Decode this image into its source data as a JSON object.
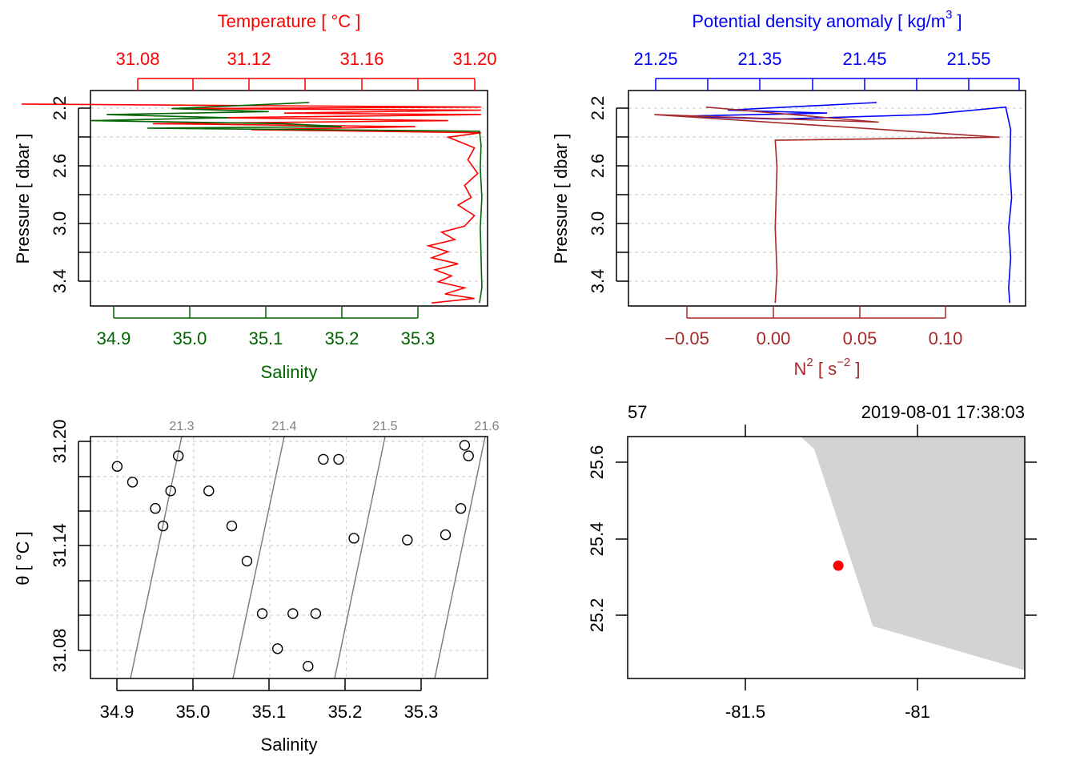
{
  "colors": {
    "temperature": "#ff0000",
    "salinity": "#006400",
    "density": "#0000ff",
    "n2": "#a52a2a",
    "tsPoints": "#000000",
    "isopycnal": "#808080",
    "land": "#d3d3d3",
    "station": "#ff0000",
    "grid": "#d3d3d3"
  },
  "chart_data": [
    {
      "type": "line",
      "panel": "profile-temperature-salinity",
      "title_top": "Temperature [ °C ]",
      "xlabel_bottom": "Salinity",
      "ylabel": "Pressure [ dbar ]",
      "top_ticks": [
        "31.08",
        "31.12",
        "31.16",
        "31.20"
      ],
      "bottom_ticks": [
        "34.9",
        "35.0",
        "35.1",
        "35.2",
        "35.3"
      ],
      "y_ticks": [
        "2.2",
        "2.6",
        "3.0",
        "3.4"
      ],
      "top_lim": [
        31.081,
        31.202
      ],
      "bottom_lim": [
        34.88,
        35.37
      ],
      "ylim": [
        3.52,
        2.09
      ],
      "y_reversed": true,
      "grid": true,
      "series": [
        {
          "name": "Temperature",
          "axis": "top",
          "points": [
            [
              31.06,
              2.18
            ],
            [
              31.2,
              2.2
            ],
            [
              31.11,
              2.21
            ],
            [
              31.2,
              2.22
            ],
            [
              31.14,
              2.24
            ],
            [
              31.2,
              2.25
            ],
            [
              31.12,
              2.27
            ],
            [
              31.19,
              2.29
            ],
            [
              31.1,
              2.31
            ],
            [
              31.18,
              2.33
            ],
            [
              31.13,
              2.35
            ],
            [
              31.2,
              2.37
            ],
            [
              31.19,
              2.4
            ],
            [
              31.198,
              2.47
            ],
            [
              31.196,
              2.55
            ],
            [
              31.199,
              2.64
            ],
            [
              31.195,
              2.72
            ],
            [
              31.197,
              2.8
            ],
            [
              31.193,
              2.85
            ],
            [
              31.198,
              2.92
            ],
            [
              31.195,
              2.99
            ],
            [
              31.188,
              3.03
            ],
            [
              31.192,
              3.08
            ],
            [
              31.184,
              3.12
            ],
            [
              31.19,
              3.16
            ],
            [
              31.185,
              3.2
            ],
            [
              31.193,
              3.24
            ],
            [
              31.186,
              3.28
            ],
            [
              31.191,
              3.32
            ],
            [
              31.187,
              3.36
            ],
            [
              31.195,
              3.4
            ],
            [
              31.189,
              3.44
            ],
            [
              31.198,
              3.47
            ],
            [
              31.185,
              3.5
            ]
          ]
        },
        {
          "name": "Salinity",
          "axis": "bottom",
          "points": [
            [
              35.15,
              2.17
            ],
            [
              34.98,
              2.21
            ],
            [
              35.1,
              2.23
            ],
            [
              34.9,
              2.25
            ],
            [
              35.05,
              2.27
            ],
            [
              34.88,
              2.29
            ],
            [
              35.12,
              2.31
            ],
            [
              35.19,
              2.33
            ],
            [
              34.95,
              2.34
            ],
            [
              35.36,
              2.36
            ],
            [
              35.362,
              2.45
            ],
            [
              35.361,
              2.6
            ],
            [
              35.363,
              2.8
            ],
            [
              35.361,
              3.0
            ],
            [
              35.362,
              3.2
            ],
            [
              35.363,
              3.4
            ],
            [
              35.36,
              3.5
            ]
          ]
        }
      ]
    },
    {
      "type": "line",
      "panel": "profile-density-n2",
      "title_top": "Potential density anomaly [ kg/m",
      "title_top_sup": "3",
      "title_top_tail": " ]",
      "xlabel_bottom": "N",
      "xlabel_bottom_sup": "2",
      "xlabel_bottom_mid": " [ s",
      "xlabel_bottom_sup2": "−2",
      "xlabel_bottom_tail": " ]",
      "ylabel": "Pressure [ dbar ]",
      "top_ticks": [
        "21.25",
        "21.35",
        "21.45",
        "21.55"
      ],
      "bottom_ticks": [
        "−0.05",
        "0.00",
        "0.05",
        "0.10"
      ],
      "y_ticks": [
        "2.2",
        "2.6",
        "3.0",
        "3.4"
      ],
      "top_lim": [
        21.2,
        21.6
      ],
      "bottom_lim": [
        -0.085,
        0.145
      ],
      "ylim": [
        3.52,
        2.09
      ],
      "y_reversed": true,
      "grid": true,
      "series": [
        {
          "name": "Potential density anomaly",
          "axis": "top",
          "points": [
            [
              21.45,
              2.17
            ],
            [
              21.3,
              2.22
            ],
            [
              21.4,
              2.24
            ],
            [
              21.25,
              2.26
            ],
            [
              21.35,
              2.28
            ],
            [
              21.5,
              2.25
            ],
            [
              21.58,
              2.2
            ],
            [
              21.585,
              2.35
            ],
            [
              21.584,
              2.6
            ],
            [
              21.586,
              2.8
            ],
            [
              21.583,
              3.0
            ],
            [
              21.585,
              3.2
            ],
            [
              21.583,
              3.4
            ],
            [
              21.584,
              3.5
            ]
          ]
        },
        {
          "name": "N2",
          "axis": "bottom",
          "points": [
            [
              -0.04,
              2.2
            ],
            [
              0.06,
              2.3
            ],
            [
              -0.07,
              2.25
            ],
            [
              0.13,
              2.4
            ],
            [
              0.0,
              2.42
            ],
            [
              0.001,
              2.6
            ],
            [
              0.0,
              3.0
            ],
            [
              0.001,
              3.3
            ],
            [
              0.0,
              3.5
            ]
          ]
        }
      ]
    },
    {
      "type": "scatter",
      "panel": "ts-diagram",
      "xlabel": "Salinity",
      "ylabel": "θ [ °C ]",
      "x_ticks": [
        "34.9",
        "35.0",
        "35.1",
        "35.2",
        "35.3"
      ],
      "y_ticks": [
        "31.08",
        "31.14",
        "31.20"
      ],
      "xlim": [
        34.865,
        35.385
      ],
      "ylim": [
        31.063,
        31.201
      ],
      "grid": true,
      "isopycnal_labels": [
        "21.3",
        "21.4",
        "21.5",
        "21.6"
      ],
      "points": [
        [
          34.9,
          31.184
        ],
        [
          34.92,
          31.175
        ],
        [
          34.95,
          31.16
        ],
        [
          34.96,
          31.15
        ],
        [
          34.97,
          31.17
        ],
        [
          34.98,
          31.19
        ],
        [
          35.02,
          31.17
        ],
        [
          35.05,
          31.15
        ],
        [
          35.07,
          31.13
        ],
        [
          35.09,
          31.1
        ],
        [
          35.11,
          31.08
        ],
        [
          35.13,
          31.1
        ],
        [
          35.15,
          31.07
        ],
        [
          35.16,
          31.1
        ],
        [
          35.17,
          31.188
        ],
        [
          35.19,
          31.188
        ],
        [
          35.21,
          31.143
        ],
        [
          35.28,
          31.142
        ],
        [
          35.33,
          31.145
        ],
        [
          35.35,
          31.16
        ],
        [
          35.36,
          31.19
        ],
        [
          35.355,
          31.196
        ]
      ]
    },
    {
      "type": "map",
      "panel": "station-map",
      "header_left": "57",
      "header_right": "2019-08-01 17:38:03",
      "x_ticks": [
        "-81.5",
        "-81"
      ],
      "y_ticks": [
        "25.2",
        "25.4",
        "25.6"
      ],
      "xlim": [
        -81.87,
        -80.72
      ],
      "ylim": [
        25.07,
        25.67
      ],
      "station": {
        "lon": -81.26,
        "lat": 25.35
      },
      "land_polygon": [
        [
          -81.37,
          25.67
        ],
        [
          -81.33,
          25.64
        ],
        [
          -81.16,
          25.2
        ],
        [
          -80.72,
          25.09
        ],
        [
          -80.72,
          25.67
        ]
      ]
    }
  ]
}
